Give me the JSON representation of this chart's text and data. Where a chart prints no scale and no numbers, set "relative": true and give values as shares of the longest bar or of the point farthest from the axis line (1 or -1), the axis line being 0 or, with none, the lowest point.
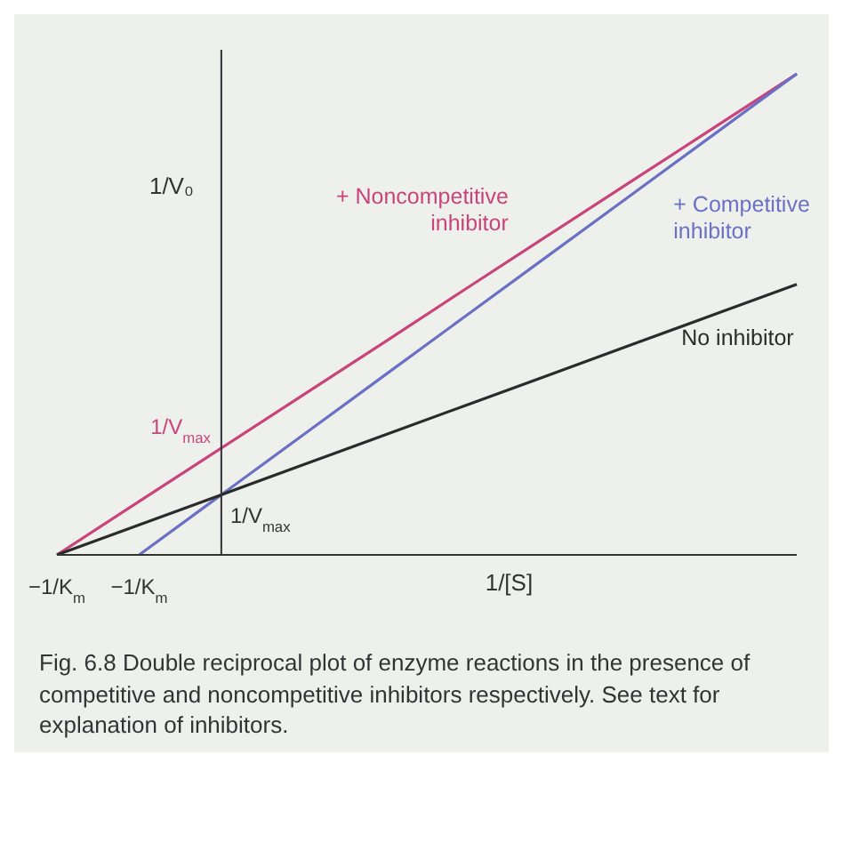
{
  "chart_data": {
    "type": "line",
    "relative": true,
    "marker": "none",
    "xlabel": "1/[S]",
    "ylabel": "1/V₀",
    "categories": [
      "−1/K$_{m}$",
      "−1/K$_{m}$",
      null,
      null,
      null,
      null,
      null,
      null,
      null,
      null
    ],
    "series": [
      {
        "name": "+ Noncompetitive inhibitor",
        "color": "#c8447a",
        "values": [
          0,
          0.111,
          0.222,
          0.333,
          0.444,
          0.556,
          0.667,
          0.778,
          0.889,
          1
        ]
      },
      {
        "name": "+ Competitive inhibitor",
        "color": "#6a70c4",
        "values": [
          null,
          0,
          0.125,
          0.25,
          0.375,
          0.5,
          0.625,
          0.75,
          0.875,
          1
        ]
      },
      {
        "name": "No inhibitor",
        "color": "#2b2b2b",
        "values": [
          0,
          0.0625,
          0.125,
          0.1875,
          0.25,
          0.3125,
          0.375,
          0.4375,
          0.5,
          0.5625
        ]
      }
    ],
    "annotations": [
      "1/V$_{max}$",
      "1/V$_{max}$",
      "Fig. 6.8 Double reciprocal plot of enzyme reactions in the presence of competitive and noncompetitive inhibitors respectively. See text for explanation of inhibitors."
    ]
  }
}
